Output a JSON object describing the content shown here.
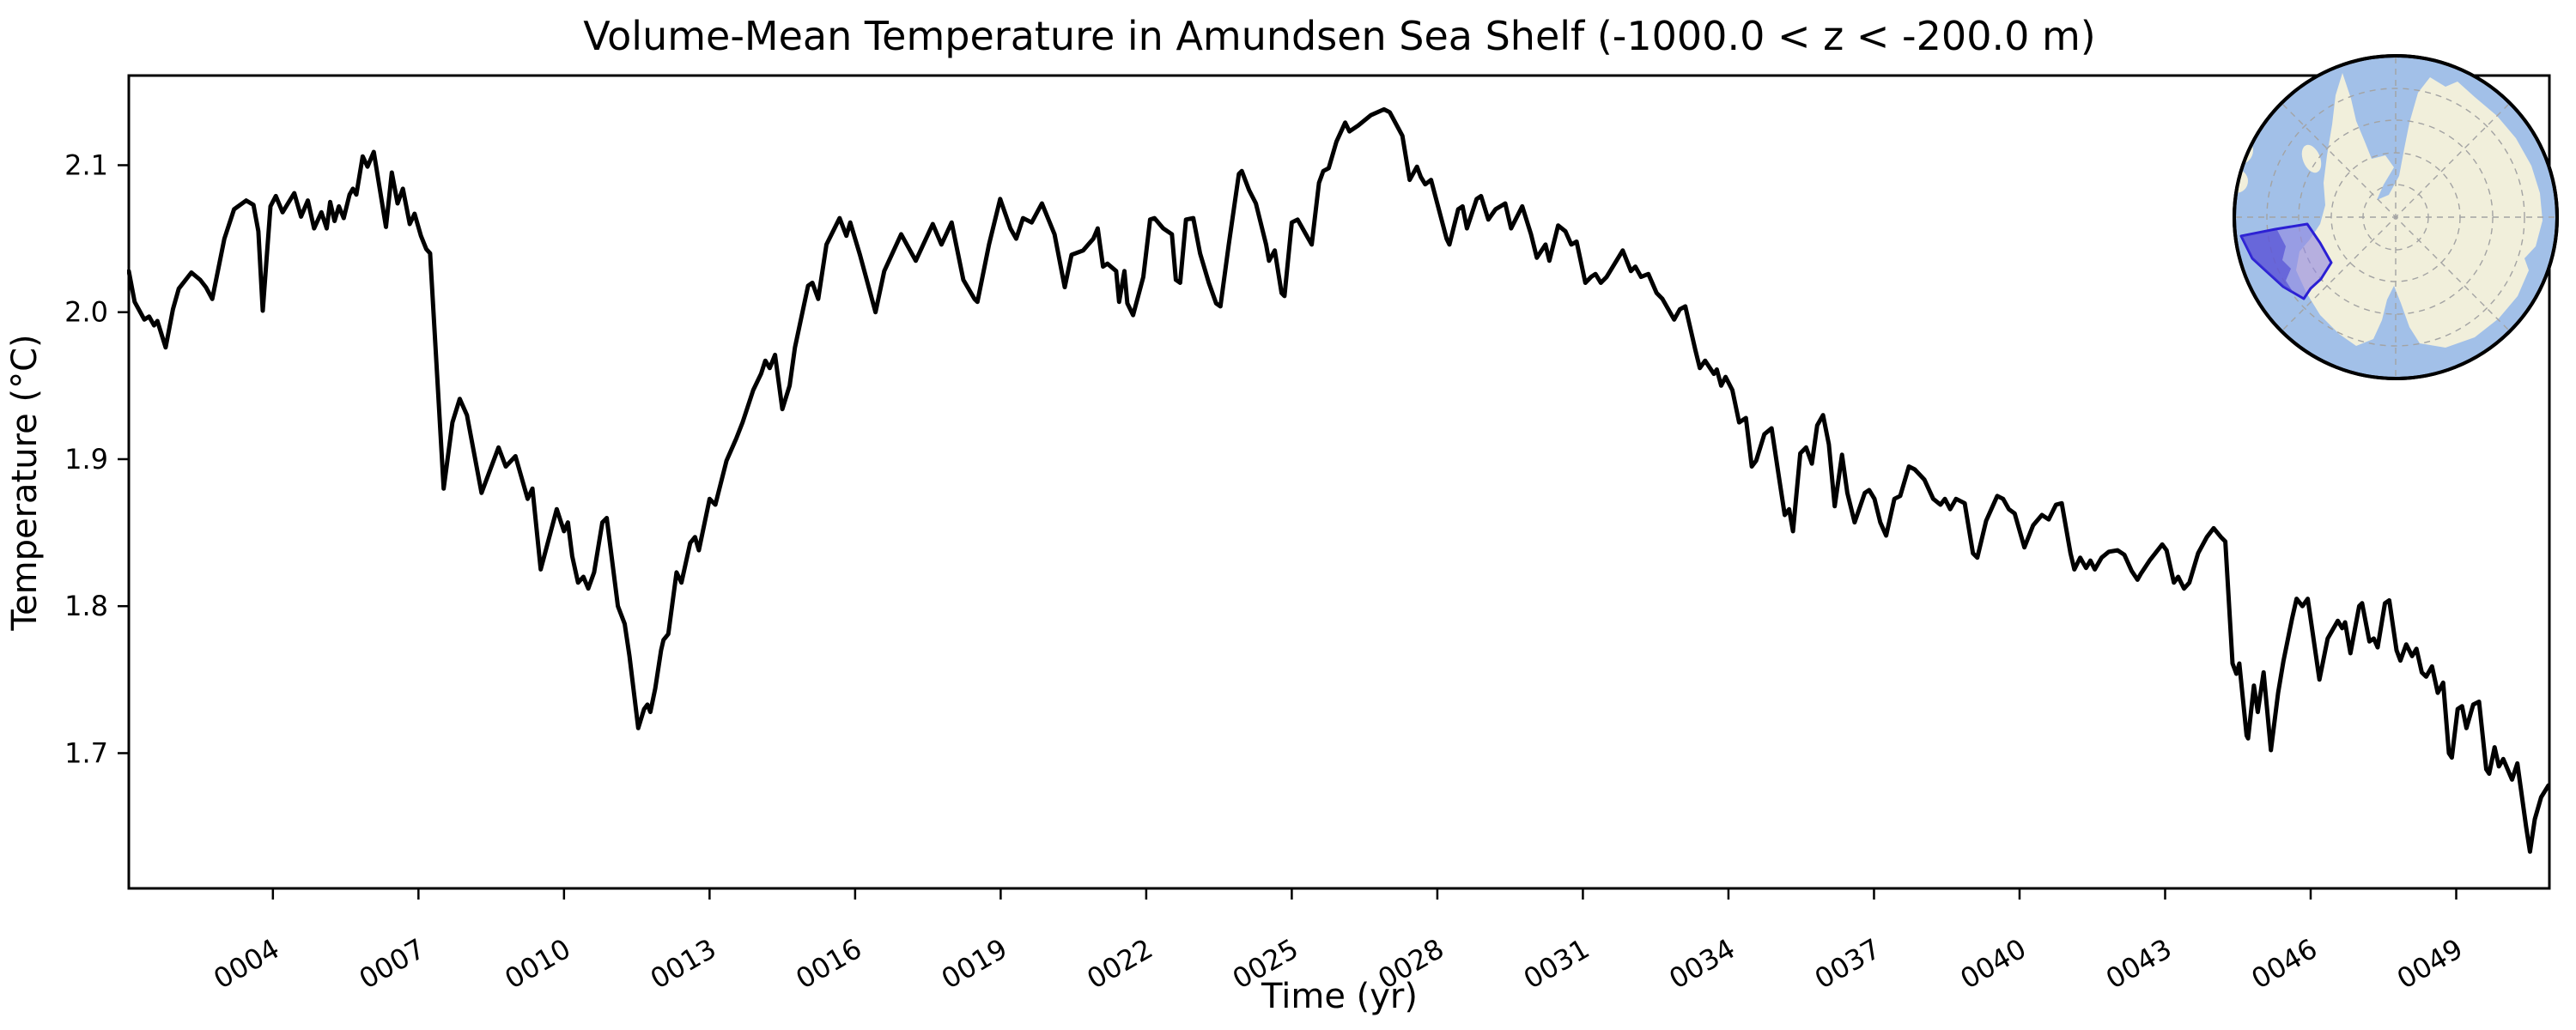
{
  "title": "Volume-Mean Temperature in Amundsen Sea Shelf (-1000.0 < z < -200.0 m)",
  "axes": {
    "xlabel": "Time (yr)",
    "ylabel": "Temperature (°C)",
    "frame_color": "#000000"
  },
  "chart_data": {
    "type": "line",
    "title": "Volume-Mean Temperature in Amundsen Sea Shelf (-1000.0 < z < -200.0 m)",
    "xlabel": "Time (yr)",
    "ylabel": "Temperature (°C)",
    "legend": "none",
    "grid": false,
    "xlim": [
      1.03,
      50.92
    ],
    "ylim": [
      1.608,
      2.161
    ],
    "xtick_values": [
      4,
      7,
      10,
      13,
      16,
      19,
      22,
      25,
      28,
      31,
      34,
      37,
      40,
      43,
      46,
      49
    ],
    "xtick_labels": [
      "0004",
      "0007",
      "0010",
      "0013",
      "0016",
      "0019",
      "0022",
      "0025",
      "0028",
      "0031",
      "0034",
      "0037",
      "0040",
      "0043",
      "0046",
      "0049"
    ],
    "ytick_values": [
      1.7,
      1.8,
      1.9,
      2.0,
      2.1
    ],
    "ytick_labels": [
      "1.7",
      "1.8",
      "1.9",
      "2.0",
      "2.1"
    ],
    "line_color": "#000000",
    "line_width": 5,
    "x": [
      1.03,
      1.15,
      1.35,
      1.45,
      1.55,
      1.62,
      1.79,
      1.94,
      2.06,
      2.32,
      2.5,
      2.62,
      2.75,
      3.0,
      3.2,
      3.45,
      3.6,
      3.7,
      3.79,
      3.95,
      4.06,
      4.2,
      4.44,
      4.58,
      4.72,
      4.85,
      5.0,
      5.11,
      5.18,
      5.27,
      5.36,
      5.46,
      5.58,
      5.65,
      5.72,
      5.85,
      5.95,
      6.08,
      6.33,
      6.45,
      6.57,
      6.68,
      6.82,
      6.92,
      7.05,
      7.16,
      7.24,
      7.38,
      7.52,
      7.7,
      7.85,
      8.0,
      8.3,
      8.65,
      8.8,
      9.0,
      9.25,
      9.35,
      9.52,
      9.85,
      10.0,
      10.08,
      10.17,
      10.29,
      10.4,
      10.5,
      10.62,
      10.79,
      10.88,
      11.11,
      11.25,
      11.35,
      11.53,
      11.65,
      11.72,
      11.78,
      11.88,
      12.0,
      12.05,
      12.15,
      12.32,
      12.42,
      12.6,
      12.7,
      12.78,
      13.0,
      13.12,
      13.35,
      13.55,
      13.68,
      13.9,
      14.06,
      14.15,
      14.24,
      14.35,
      14.5,
      14.65,
      14.76,
      15.03,
      15.12,
      15.24,
      15.41,
      15.68,
      15.82,
      15.9,
      16.1,
      16.42,
      16.6,
      16.95,
      17.25,
      17.6,
      17.78,
      17.99,
      18.23,
      18.46,
      18.52,
      18.76,
      18.99,
      19.2,
      19.32,
      19.46,
      19.64,
      19.85,
      20.11,
      20.32,
      20.46,
      20.7,
      20.91,
      21.0,
      21.11,
      21.2,
      21.38,
      21.44,
      21.55,
      21.61,
      21.73,
      21.94,
      22.08,
      22.17,
      22.35,
      22.53,
      22.61,
      22.7,
      22.82,
      22.97,
      23.11,
      23.29,
      23.44,
      23.53,
      23.7,
      23.91,
      23.97,
      24.12,
      24.26,
      24.47,
      24.53,
      24.65,
      24.79,
      24.85,
      25.0,
      25.12,
      25.29,
      25.41,
      25.56,
      25.65,
      25.76,
      25.92,
      26.1,
      26.19,
      26.37,
      26.63,
      26.9,
      27.02,
      27.28,
      27.43,
      27.58,
      27.66,
      27.75,
      27.87,
      28.19,
      28.25,
      28.43,
      28.52,
      28.61,
      28.81,
      28.9,
      29.05,
      29.2,
      29.4,
      29.52,
      29.75,
      29.93,
      30.05,
      30.23,
      30.31,
      30.49,
      30.64,
      30.76,
      30.87,
      31.05,
      31.17,
      31.26,
      31.37,
      31.49,
      31.82,
      31.99,
      32.08,
      32.2,
      32.35,
      32.52,
      32.64,
      32.88,
      33.0,
      33.11,
      33.23,
      33.32,
      33.41,
      33.52,
      33.7,
      33.76,
      33.85,
      33.94,
      34.08,
      34.22,
      34.36,
      34.48,
      34.57,
      34.74,
      34.89,
      35.04,
      35.16,
      35.25,
      35.33,
      35.48,
      35.6,
      35.72,
      35.83,
      35.95,
      36.07,
      36.19,
      36.34,
      36.45,
      36.6,
      36.81,
      36.9,
      37.01,
      37.13,
      37.25,
      37.42,
      37.54,
      37.72,
      37.84,
      38.04,
      38.22,
      38.37,
      38.46,
      38.57,
      38.69,
      38.87,
      39.04,
      39.13,
      39.31,
      39.54,
      39.66,
      39.78,
      39.9,
      40.1,
      40.28,
      40.46,
      40.6,
      40.75,
      40.87,
      41.05,
      41.13,
      41.25,
      41.37,
      41.46,
      41.55,
      41.69,
      41.84,
      42.02,
      42.16,
      42.31,
      42.43,
      42.5,
      42.68,
      42.94,
      43.03,
      43.18,
      43.27,
      43.39,
      43.5,
      43.68,
      43.86,
      44.0,
      44.15,
      44.24,
      44.39,
      44.47,
      44.53,
      44.68,
      44.71,
      44.83,
      44.91,
      45.03,
      45.18,
      45.33,
      45.44,
      45.62,
      45.71,
      45.83,
      45.94,
      46.18,
      46.35,
      46.56,
      46.65,
      46.71,
      46.82,
      47.0,
      47.06,
      47.21,
      47.3,
      47.38,
      47.53,
      47.62,
      47.77,
      47.85,
      47.97,
      48.09,
      48.18,
      48.29,
      48.38,
      48.5,
      48.62,
      48.73,
      48.85,
      48.91,
      49.03,
      49.12,
      49.21,
      49.35,
      49.47,
      49.62,
      49.68,
      49.79,
      49.88,
      49.97,
      50.15,
      50.26,
      50.44,
      50.52,
      50.62,
      50.75,
      50.9
    ],
    "y": [
      2.028,
      2.007,
      1.995,
      1.997,
      1.991,
      1.994,
      1.976,
      2.002,
      2.016,
      2.027,
      2.022,
      2.017,
      2.009,
      2.05,
      2.07,
      2.076,
      2.073,
      2.055,
      2.001,
      2.072,
      2.079,
      2.068,
      2.081,
      2.065,
      2.076,
      2.057,
      2.068,
      2.057,
      2.075,
      2.062,
      2.072,
      2.064,
      2.08,
      2.084,
      2.08,
      2.106,
      2.099,
      2.109,
      2.058,
      2.095,
      2.074,
      2.084,
      2.06,
      2.067,
      2.052,
      2.043,
      2.04,
      1.96,
      1.88,
      1.925,
      1.941,
      1.93,
      1.877,
      1.908,
      1.895,
      1.902,
      1.873,
      1.88,
      1.825,
      1.866,
      1.851,
      1.857,
      1.834,
      1.816,
      1.82,
      1.812,
      1.823,
      1.857,
      1.86,
      1.8,
      1.788,
      1.766,
      1.717,
      1.73,
      1.733,
      1.728,
      1.744,
      1.77,
      1.777,
      1.781,
      1.823,
      1.816,
      1.843,
      1.847,
      1.838,
      1.873,
      1.869,
      1.899,
      1.914,
      1.925,
      1.947,
      1.958,
      1.967,
      1.962,
      1.971,
      1.934,
      1.95,
      1.976,
      2.018,
      2.02,
      2.009,
      2.046,
      2.064,
      2.052,
      2.061,
      2.039,
      2.0,
      2.028,
      2.053,
      2.035,
      2.06,
      2.046,
      2.061,
      2.022,
      2.009,
      2.007,
      2.046,
      2.077,
      2.057,
      2.05,
      2.064,
      2.061,
      2.074,
      2.053,
      2.017,
      2.039,
      2.042,
      2.05,
      2.057,
      2.031,
      2.033,
      2.028,
      2.007,
      2.028,
      2.006,
      1.998,
      2.024,
      2.063,
      2.064,
      2.057,
      2.053,
      2.022,
      2.02,
      2.063,
      2.064,
      2.04,
      2.02,
      2.006,
      2.004,
      2.046,
      2.094,
      2.096,
      2.083,
      2.074,
      2.046,
      2.035,
      2.042,
      2.013,
      2.011,
      2.061,
      2.063,
      2.053,
      2.046,
      2.088,
      2.096,
      2.098,
      2.116,
      2.129,
      2.123,
      2.127,
      2.134,
      2.138,
      2.136,
      2.12,
      2.09,
      2.099,
      2.092,
      2.087,
      2.09,
      2.05,
      2.046,
      2.07,
      2.072,
      2.057,
      2.077,
      2.079,
      2.063,
      2.07,
      2.074,
      2.057,
      2.072,
      2.053,
      2.037,
      2.046,
      2.035,
      2.059,
      2.055,
      2.046,
      2.048,
      2.02,
      2.024,
      2.026,
      2.02,
      2.024,
      2.042,
      2.028,
      2.031,
      2.024,
      2.026,
      2.013,
      2.009,
      1.995,
      2.002,
      2.004,
      1.987,
      1.974,
      1.962,
      1.967,
      1.958,
      1.961,
      1.95,
      1.956,
      1.947,
      1.925,
      1.928,
      1.895,
      1.899,
      1.917,
      1.921,
      1.888,
      1.862,
      1.866,
      1.851,
      1.904,
      1.908,
      1.897,
      1.923,
      1.93,
      1.91,
      1.868,
      1.903,
      1.877,
      1.857,
      1.877,
      1.879,
      1.873,
      1.857,
      1.848,
      1.873,
      1.875,
      1.895,
      1.893,
      1.886,
      1.873,
      1.869,
      1.873,
      1.866,
      1.873,
      1.87,
      1.836,
      1.833,
      1.858,
      1.875,
      1.873,
      1.866,
      1.863,
      1.84,
      1.855,
      1.862,
      1.859,
      1.869,
      1.87,
      1.836,
      1.825,
      1.833,
      1.826,
      1.831,
      1.825,
      1.833,
      1.837,
      1.838,
      1.835,
      1.824,
      1.818,
      1.822,
      1.831,
      1.842,
      1.838,
      1.816,
      1.82,
      1.812,
      1.816,
      1.836,
      1.847,
      1.853,
      1.847,
      1.844,
      1.761,
      1.754,
      1.761,
      1.712,
      1.71,
      1.746,
      1.728,
      1.755,
      1.702,
      1.741,
      1.763,
      1.792,
      1.805,
      1.8,
      1.805,
      1.75,
      1.778,
      1.79,
      1.785,
      1.789,
      1.768,
      1.8,
      1.802,
      1.776,
      1.778,
      1.772,
      1.802,
      1.804,
      1.77,
      1.763,
      1.774,
      1.766,
      1.771,
      1.755,
      1.752,
      1.759,
      1.741,
      1.748,
      1.7,
      1.697,
      1.73,
      1.732,
      1.717,
      1.733,
      1.735,
      1.689,
      1.686,
      1.704,
      1.691,
      1.696,
      1.682,
      1.693,
      1.65,
      1.633,
      1.655,
      1.67,
      1.678
    ]
  },
  "inset_map": {
    "description": "South polar view of Antarctica with Amundsen Sea Shelf region highlighted",
    "colors": {
      "ocean": "#a2c0e8",
      "land": "#f1efdb",
      "region_fill": "#9188e2",
      "region_fill_dark": "#413bd2",
      "region_border": "#2b1fd4",
      "graticule": "#a3a3a3",
      "border": "#000000"
    }
  }
}
